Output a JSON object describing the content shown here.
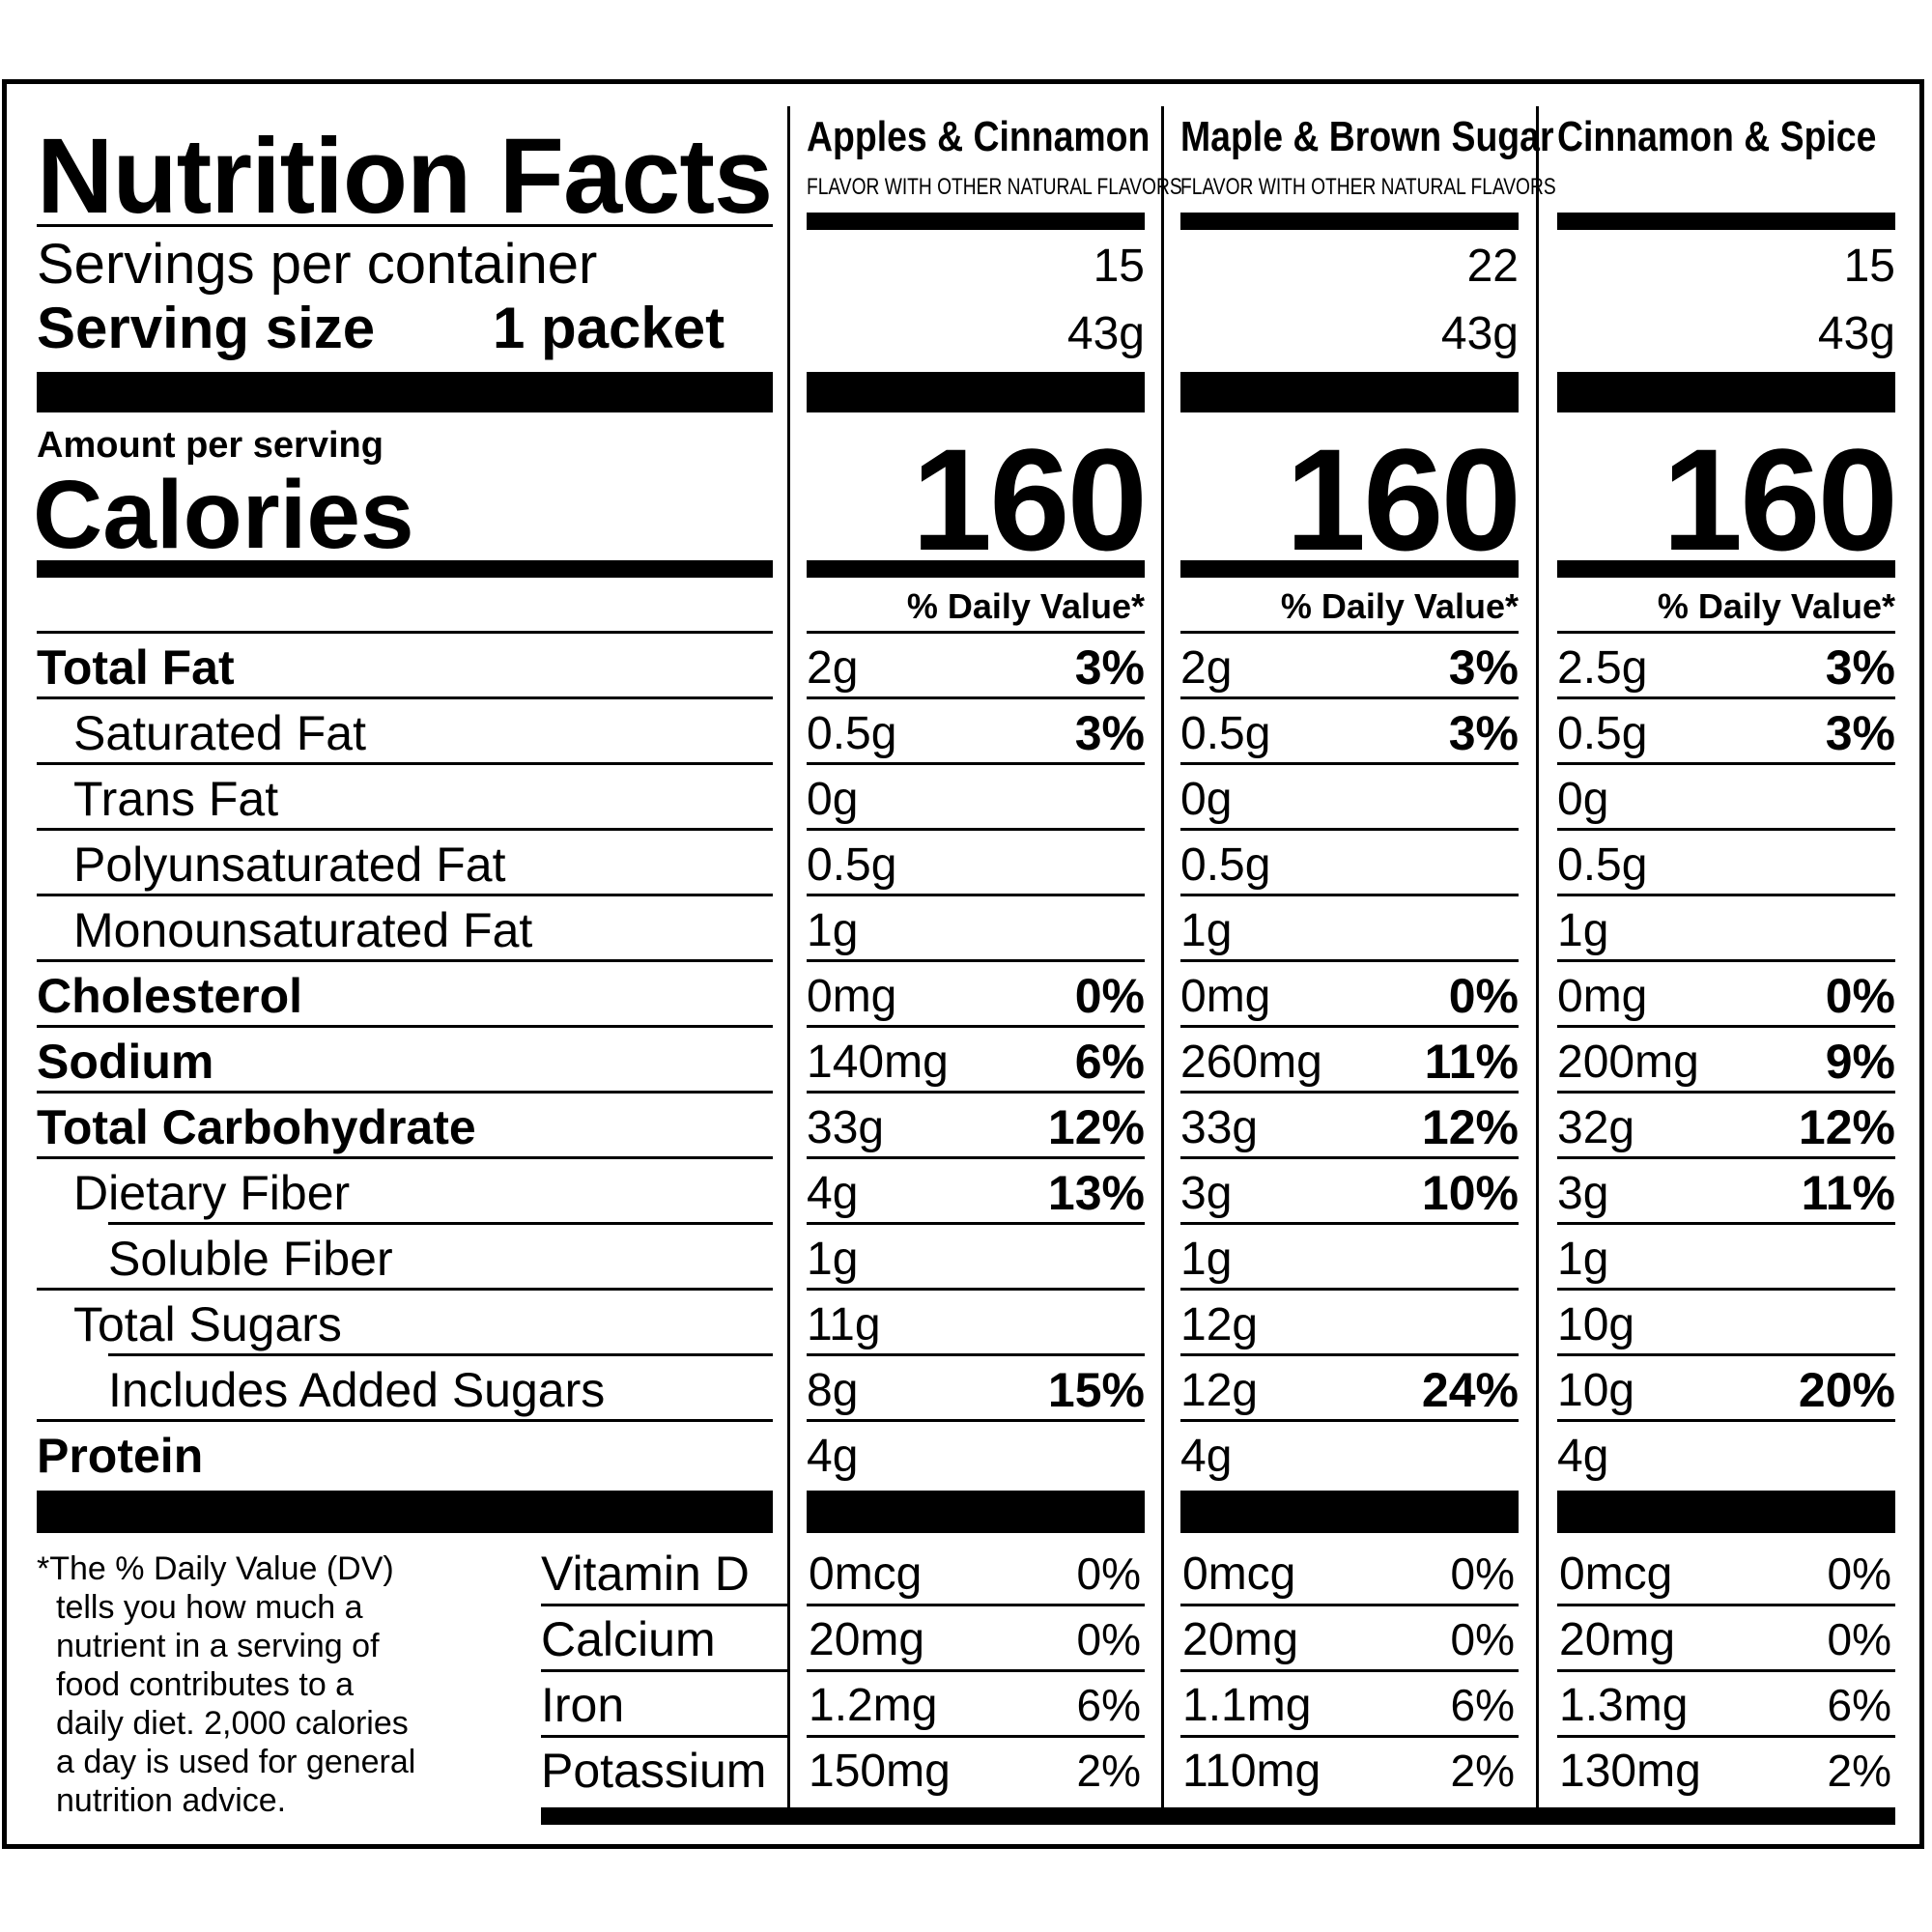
{
  "title": "Nutrition Facts",
  "servings_label": "Servings per container",
  "serving_size_label": "Serving size",
  "serving_size_value": "1 packet",
  "amount_per_serving": "Amount per serving",
  "calories_label": "Calories",
  "nutrient_labels": [
    "Total Fat",
    "Saturated Fat",
    "Trans Fat",
    "Polyunsaturated Fat",
    "Monounsaturated Fat",
    "Cholesterol",
    "Sodium",
    "Total Carbohydrate",
    "Dietary Fiber",
    "Soluble Fiber",
    "Total Sugars",
    "Includes Added Sugars",
    "Protein"
  ],
  "micro_labels": [
    "Vitamin D",
    "Calcium",
    "Iron",
    "Potassium"
  ],
  "footnote": "*The % Daily Value (DV) tells you how much a nutrient in a serving of food contributes to a daily diet. 2,000 calories a day is used for general nutrition advice.",
  "footnote_lines": [
    "*The % Daily Value (DV)",
    "tells you how much a",
    "nutrient in a serving of",
    "food contributes to a",
    "daily diet. 2,000 calories",
    "a day is used for general",
    "nutrition advice."
  ],
  "products": [
    {
      "name": "Apples & Cinnamon",
      "subtitle": "FLAVOR WITH OTHER NATURAL FLAVORS",
      "servings": "15",
      "serving_size": "43g",
      "calories": "160",
      "dv_header": "% Daily Value*",
      "nutrients": [
        {
          "amount": "2g",
          "dv": "3%"
        },
        {
          "amount": "0.5g",
          "dv": "3%"
        },
        {
          "amount": "0g",
          "dv": ""
        },
        {
          "amount": "0.5g",
          "dv": ""
        },
        {
          "amount": "1g",
          "dv": ""
        },
        {
          "amount": "0mg",
          "dv": "0%"
        },
        {
          "amount": "140mg",
          "dv": "6%"
        },
        {
          "amount": "33g",
          "dv": "12%"
        },
        {
          "amount": "4g",
          "dv": "13%"
        },
        {
          "amount": "1g",
          "dv": ""
        },
        {
          "amount": "11g",
          "dv": ""
        },
        {
          "amount": "8g",
          "dv": "15%"
        },
        {
          "amount": "4g",
          "dv": ""
        }
      ],
      "micros": [
        {
          "amount": "0mcg",
          "dv": "0%"
        },
        {
          "amount": "20mg",
          "dv": "0%"
        },
        {
          "amount": "1.2mg",
          "dv": "6%"
        },
        {
          "amount": "150mg",
          "dv": "2%"
        }
      ]
    },
    {
      "name": "Maple & Brown Sugar",
      "subtitle": "FLAVOR WITH OTHER NATURAL FLAVORS",
      "servings": "22",
      "serving_size": "43g",
      "calories": "160",
      "dv_header": "% Daily Value*",
      "nutrients": [
        {
          "amount": "2g",
          "dv": "3%"
        },
        {
          "amount": "0.5g",
          "dv": "3%"
        },
        {
          "amount": "0g",
          "dv": ""
        },
        {
          "amount": "0.5g",
          "dv": ""
        },
        {
          "amount": "1g",
          "dv": ""
        },
        {
          "amount": "0mg",
          "dv": "0%"
        },
        {
          "amount": "260mg",
          "dv": "11%"
        },
        {
          "amount": "33g",
          "dv": "12%"
        },
        {
          "amount": "3g",
          "dv": "10%"
        },
        {
          "amount": "1g",
          "dv": ""
        },
        {
          "amount": "12g",
          "dv": ""
        },
        {
          "amount": "12g",
          "dv": "24%"
        },
        {
          "amount": "4g",
          "dv": ""
        }
      ],
      "micros": [
        {
          "amount": "0mcg",
          "dv": "0%"
        },
        {
          "amount": "20mg",
          "dv": "0%"
        },
        {
          "amount": "1.1mg",
          "dv": "6%"
        },
        {
          "amount": "110mg",
          "dv": "2%"
        }
      ]
    },
    {
      "name": "Cinnamon & Spice",
      "subtitle": "",
      "servings": "15",
      "serving_size": "43g",
      "calories": "160",
      "dv_header": "% Daily Value*",
      "nutrients": [
        {
          "amount": "2.5g",
          "dv": "3%"
        },
        {
          "amount": "0.5g",
          "dv": "3%"
        },
        {
          "amount": "0g",
          "dv": ""
        },
        {
          "amount": "0.5g",
          "dv": ""
        },
        {
          "amount": "1g",
          "dv": ""
        },
        {
          "amount": "0mg",
          "dv": "0%"
        },
        {
          "amount": "200mg",
          "dv": "9%"
        },
        {
          "amount": "32g",
          "dv": "12%"
        },
        {
          "amount": "3g",
          "dv": "11%"
        },
        {
          "amount": "1g",
          "dv": ""
        },
        {
          "amount": "10g",
          "dv": ""
        },
        {
          "amount": "10g",
          "dv": "20%"
        },
        {
          "amount": "4g",
          "dv": ""
        }
      ],
      "micros": [
        {
          "amount": "0mcg",
          "dv": "0%"
        },
        {
          "amount": "20mg",
          "dv": "0%"
        },
        {
          "amount": "1.3mg",
          "dv": "6%"
        },
        {
          "amount": "130mg",
          "dv": "2%"
        }
      ]
    }
  ]
}
